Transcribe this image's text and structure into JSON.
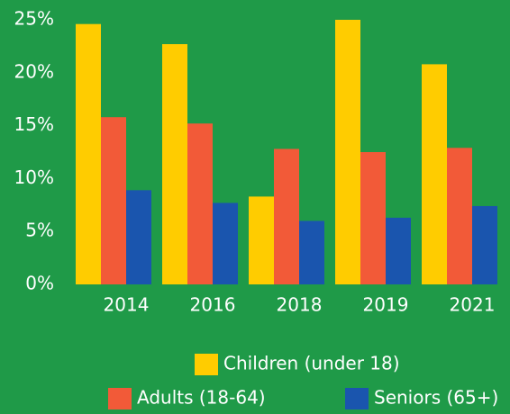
{
  "chart_data": {
    "type": "bar",
    "categories": [
      "2014",
      "2016",
      "2018",
      "2019",
      "2021"
    ],
    "series": [
      {
        "name": "Children (under 18)",
        "color": "#ffcc00",
        "values": [
          24.6,
          22.7,
          8.3,
          25.0,
          20.8
        ]
      },
      {
        "name": "Adults (18-64)",
        "color": "#f25a38",
        "values": [
          15.8,
          15.2,
          12.8,
          12.5,
          12.9
        ]
      },
      {
        "name": "Seniors (65+)",
        "color": "#1a55ae",
        "values": [
          8.9,
          7.7,
          6.0,
          6.3,
          7.4
        ]
      }
    ],
    "ylim": [
      0,
      25
    ],
    "yticks": [
      {
        "value": 0,
        "label": "0%"
      },
      {
        "value": 5,
        "label": "5%"
      },
      {
        "value": 10,
        "label": "10%"
      },
      {
        "value": 15,
        "label": "15%"
      },
      {
        "value": 20,
        "label": "20%"
      },
      {
        "value": 25,
        "label": "25%"
      }
    ],
    "grid": false
  }
}
